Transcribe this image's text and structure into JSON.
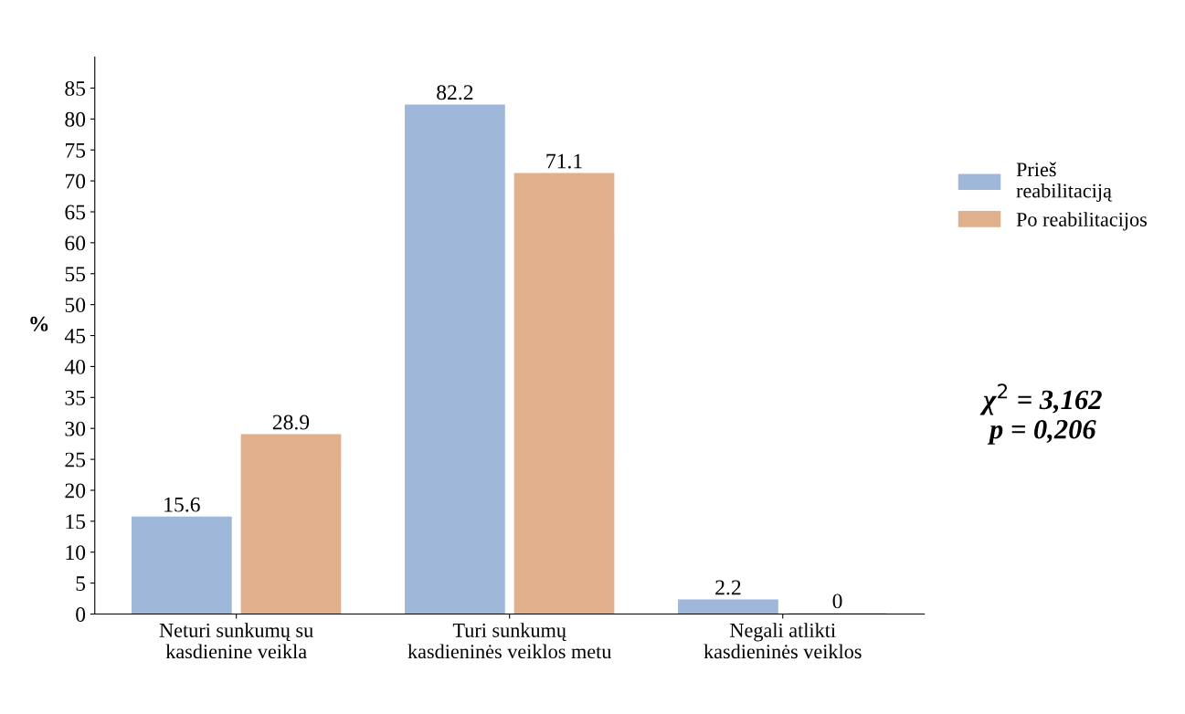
{
  "chart_data": {
    "type": "bar",
    "ylabel": "%",
    "categories": [
      "Neturi sunkumų su\nkasdienine veikla",
      "Turi sunkumų\nkasdieninės veiklos metu",
      "Negali atlikti\nkasdieninės veiklos"
    ],
    "series": [
      {
        "name": "Prieš\nreabilitaciją",
        "color": "#9fb8d9",
        "values": [
          15.6,
          82.2,
          2.2
        ]
      },
      {
        "name": "Po reabilitacijos",
        "color": "#e0b08c",
        "values": [
          28.9,
          71.1,
          0
        ]
      }
    ],
    "ylim": [
      0,
      90
    ],
    "yticks": [
      0,
      5,
      10,
      15,
      20,
      25,
      30,
      35,
      40,
      45,
      50,
      55,
      60,
      65,
      70,
      75,
      80,
      85
    ],
    "data_labels": true,
    "legend": "right",
    "grid": false,
    "annotations": [
      "χ$^{2}$ = 3,162\np = 0,206"
    ]
  }
}
